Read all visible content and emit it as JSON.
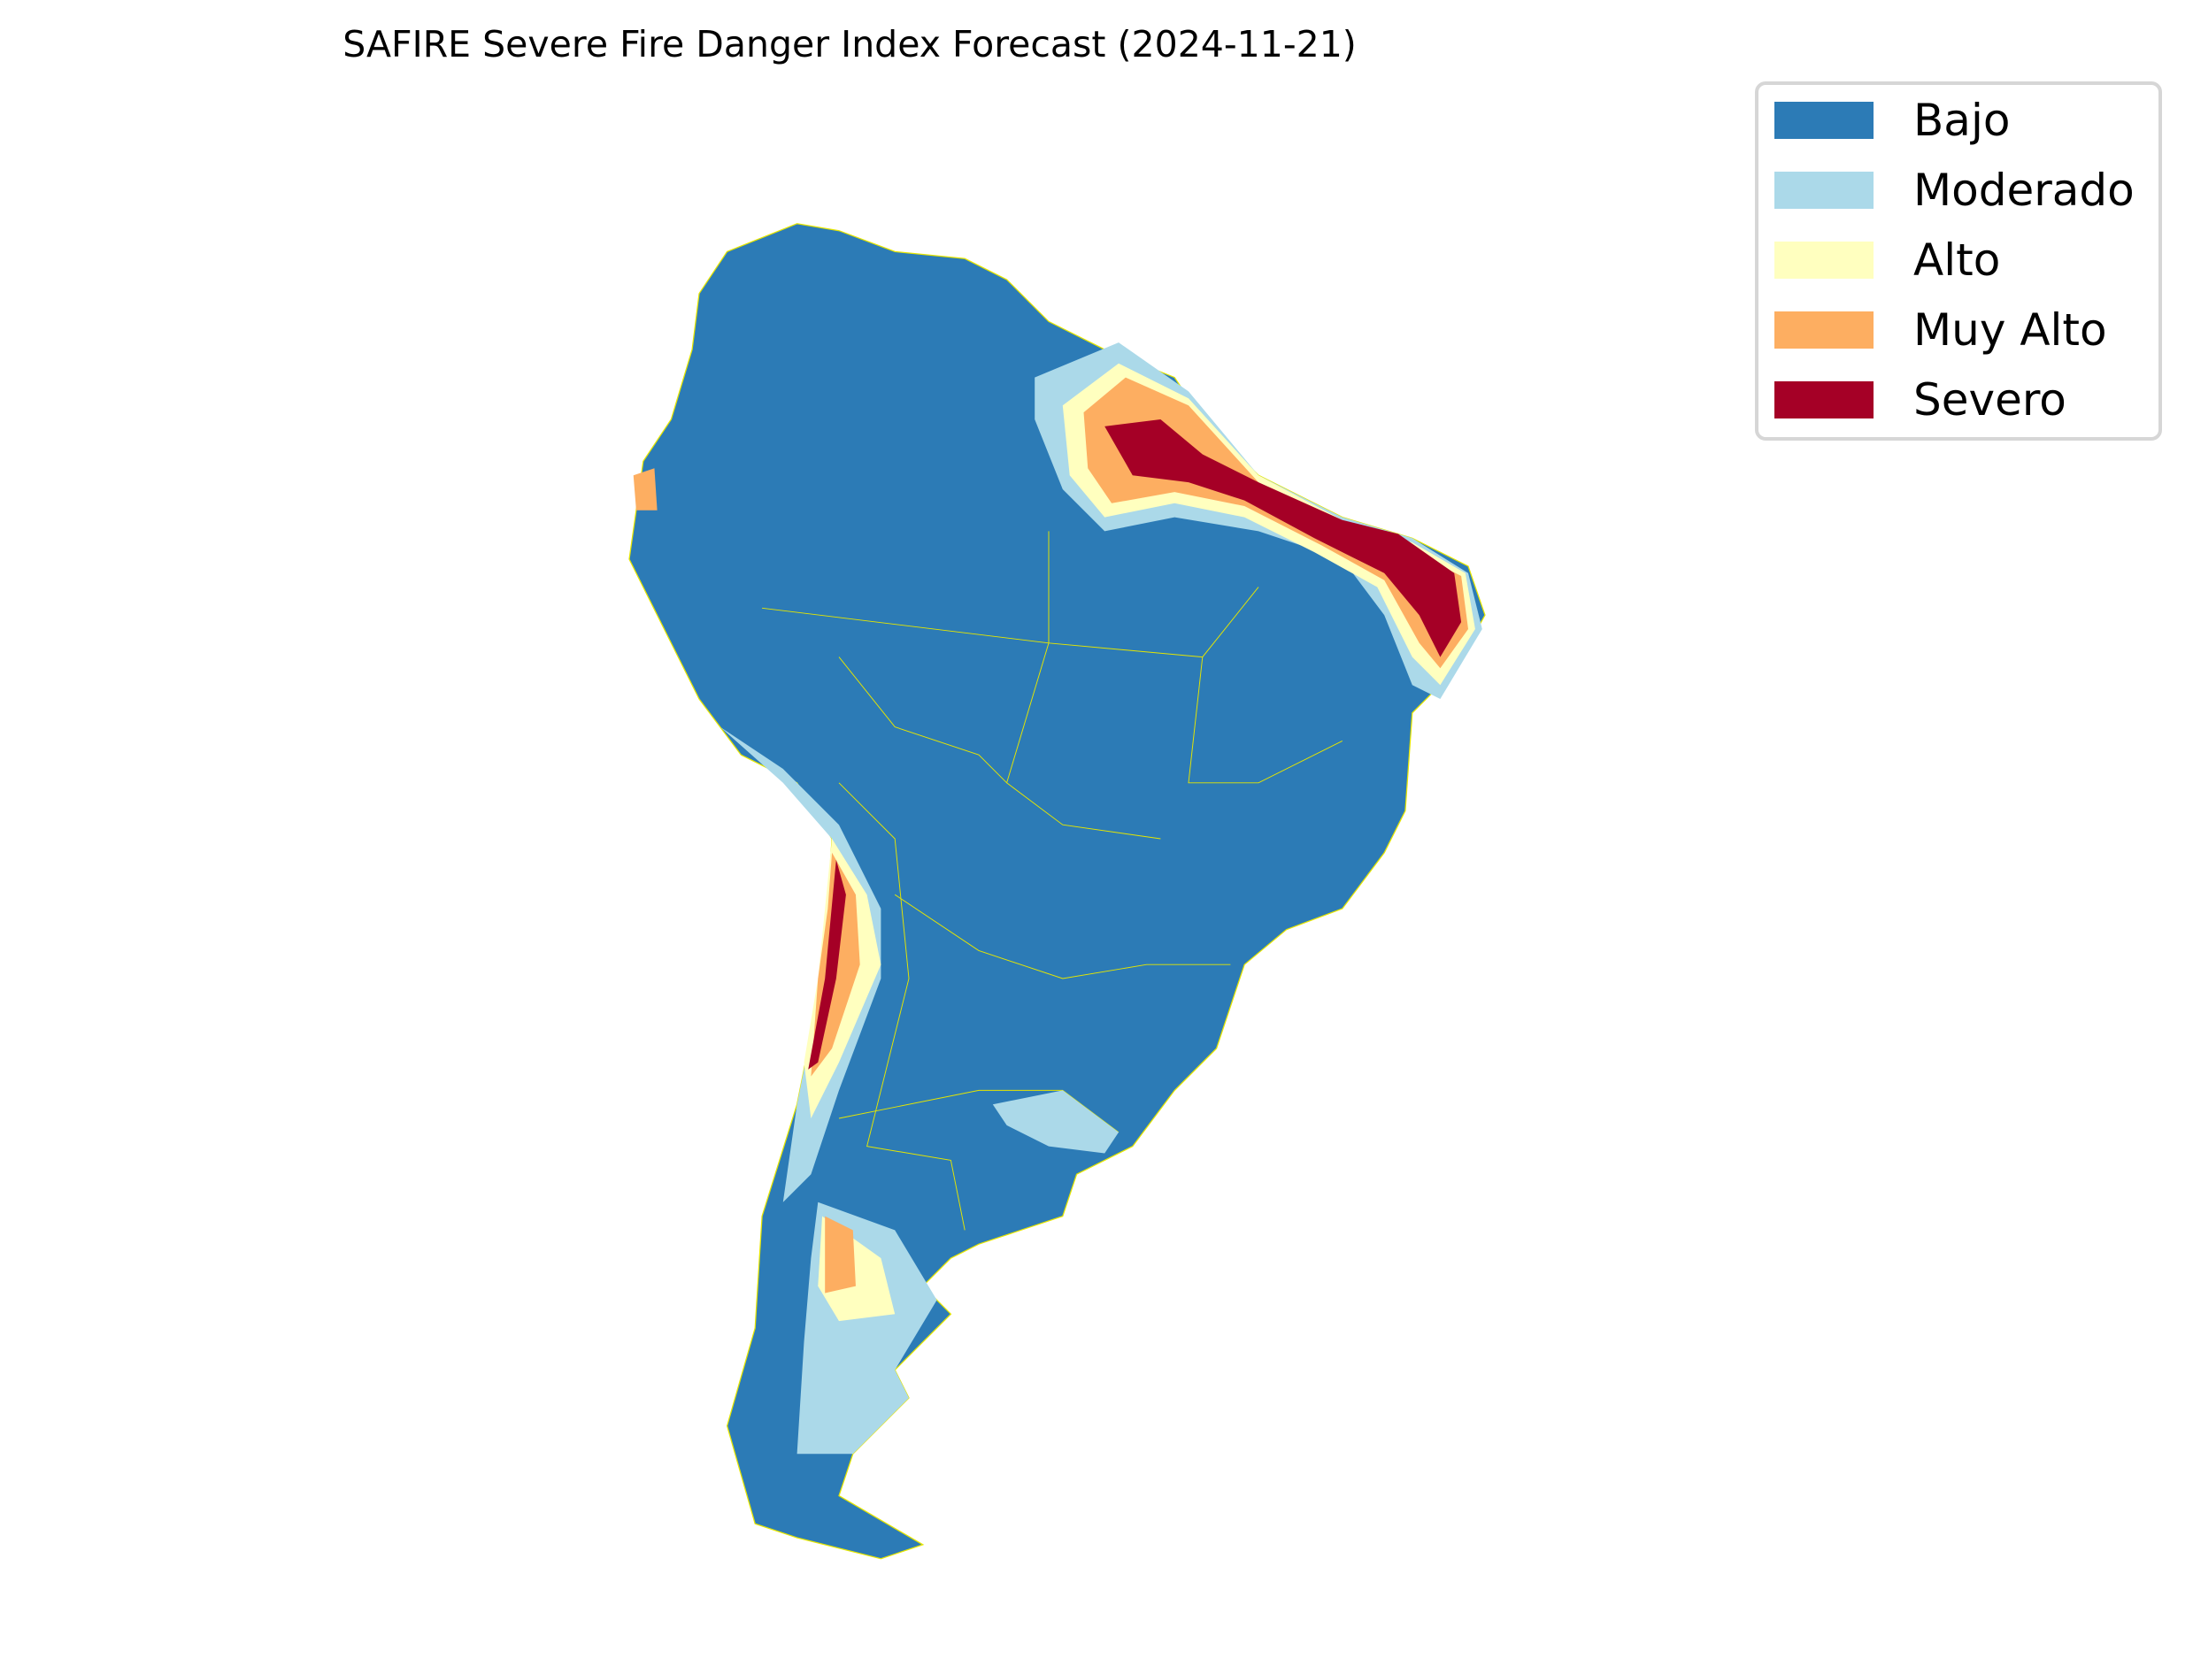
{
  "chart_data": {
    "type": "map",
    "title": "SAFIRE Severe Fire Danger Index Forecast (2024-11-21)",
    "region": "South America",
    "legend_position": "top-right",
    "border_color": "#e6e600",
    "legend": [
      {
        "label": "Bajo",
        "color": "#2c7bb6"
      },
      {
        "label": "Moderado",
        "color": "#abd9e9"
      },
      {
        "label": "Alto",
        "color": "#ffffbf"
      },
      {
        "label": "Muy Alto",
        "color": "#fdae61"
      },
      {
        "label": "Severo",
        "color": "#a50026"
      }
    ]
  }
}
